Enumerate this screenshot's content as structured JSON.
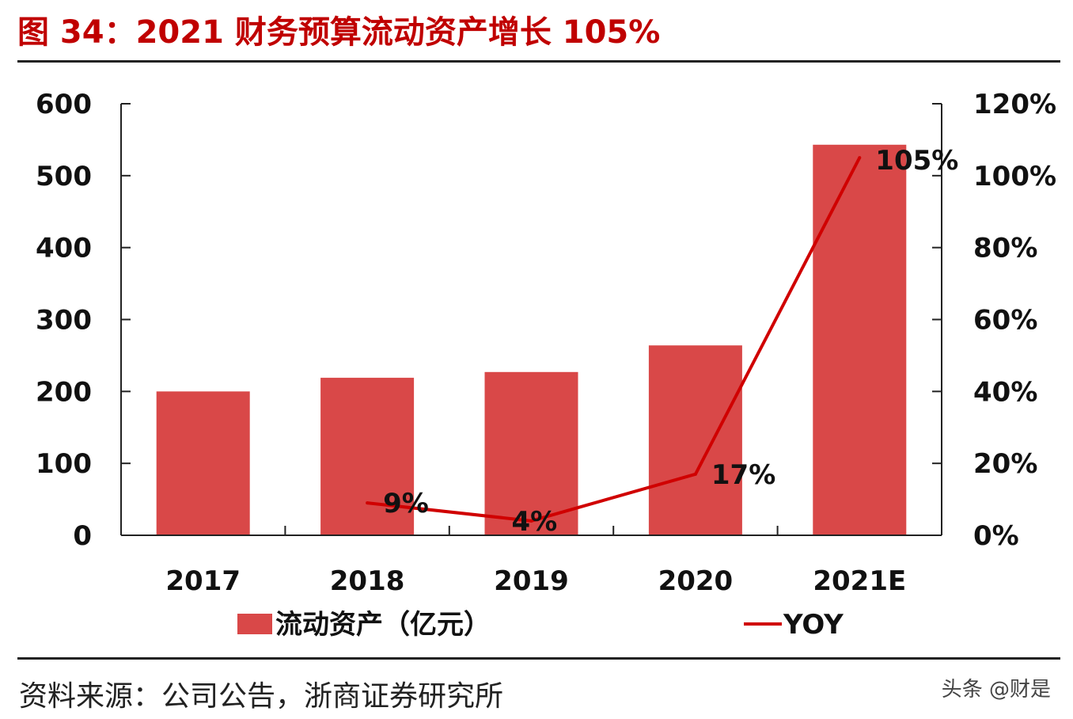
{
  "title": "图 34：2021 财务预算流动资产增长 105%",
  "source": "资料来源：公司公告，浙商证券研究所",
  "watermark": "头条 @财是",
  "chart_data": {
    "type": "bar+line",
    "categories": [
      "2017",
      "2018",
      "2019",
      "2020",
      "2021E"
    ],
    "series": [
      {
        "name": "流动资产（亿元）",
        "type": "bar",
        "axis": "left",
        "color": "#d94848",
        "values": [
          200,
          219,
          227,
          264,
          543
        ]
      },
      {
        "name": "YOY",
        "type": "line",
        "axis": "right",
        "color": "#d00000",
        "values": [
          null,
          9,
          4,
          17,
          105
        ],
        "labels": [
          "",
          "9%",
          "4%",
          "17%",
          "105%"
        ]
      }
    ],
    "y_left": {
      "ylim": [
        0,
        600
      ],
      "ticks": [
        "0",
        "100",
        "200",
        "300",
        "400",
        "500",
        "600"
      ]
    },
    "y_right": {
      "ylim": [
        0,
        120
      ],
      "ticks": [
        "0%",
        "20%",
        "40%",
        "60%",
        "80%",
        "100%",
        "120%"
      ]
    },
    "grid": false,
    "legend": "bottom"
  }
}
